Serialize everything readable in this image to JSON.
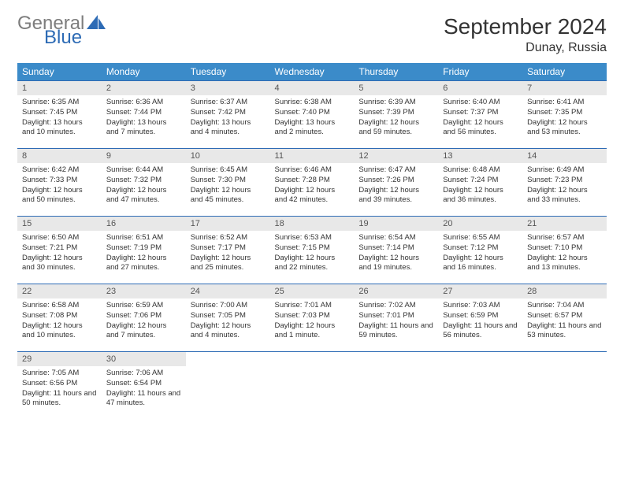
{
  "logo": {
    "gray": "General",
    "blue": "Blue",
    "sail_color": "#2d6bb5"
  },
  "title": "September 2024",
  "location": "Dunay, Russia",
  "colors": {
    "header_bg": "#3b8bc9",
    "header_text": "#ffffff",
    "row_border": "#2d6bb5",
    "daynum_bg": "#e8e8e8",
    "body_text": "#333333"
  },
  "dow": [
    "Sunday",
    "Monday",
    "Tuesday",
    "Wednesday",
    "Thursday",
    "Friday",
    "Saturday"
  ],
  "weeks": [
    [
      {
        "n": "1",
        "sr": "6:35 AM",
        "ss": "7:45 PM",
        "dl": "13 hours and 10 minutes."
      },
      {
        "n": "2",
        "sr": "6:36 AM",
        "ss": "7:44 PM",
        "dl": "13 hours and 7 minutes."
      },
      {
        "n": "3",
        "sr": "6:37 AM",
        "ss": "7:42 PM",
        "dl": "13 hours and 4 minutes."
      },
      {
        "n": "4",
        "sr": "6:38 AM",
        "ss": "7:40 PM",
        "dl": "13 hours and 2 minutes."
      },
      {
        "n": "5",
        "sr": "6:39 AM",
        "ss": "7:39 PM",
        "dl": "12 hours and 59 minutes."
      },
      {
        "n": "6",
        "sr": "6:40 AM",
        "ss": "7:37 PM",
        "dl": "12 hours and 56 minutes."
      },
      {
        "n": "7",
        "sr": "6:41 AM",
        "ss": "7:35 PM",
        "dl": "12 hours and 53 minutes."
      }
    ],
    [
      {
        "n": "8",
        "sr": "6:42 AM",
        "ss": "7:33 PM",
        "dl": "12 hours and 50 minutes."
      },
      {
        "n": "9",
        "sr": "6:44 AM",
        "ss": "7:32 PM",
        "dl": "12 hours and 47 minutes."
      },
      {
        "n": "10",
        "sr": "6:45 AM",
        "ss": "7:30 PM",
        "dl": "12 hours and 45 minutes."
      },
      {
        "n": "11",
        "sr": "6:46 AM",
        "ss": "7:28 PM",
        "dl": "12 hours and 42 minutes."
      },
      {
        "n": "12",
        "sr": "6:47 AM",
        "ss": "7:26 PM",
        "dl": "12 hours and 39 minutes."
      },
      {
        "n": "13",
        "sr": "6:48 AM",
        "ss": "7:24 PM",
        "dl": "12 hours and 36 minutes."
      },
      {
        "n": "14",
        "sr": "6:49 AM",
        "ss": "7:23 PM",
        "dl": "12 hours and 33 minutes."
      }
    ],
    [
      {
        "n": "15",
        "sr": "6:50 AM",
        "ss": "7:21 PM",
        "dl": "12 hours and 30 minutes."
      },
      {
        "n": "16",
        "sr": "6:51 AM",
        "ss": "7:19 PM",
        "dl": "12 hours and 27 minutes."
      },
      {
        "n": "17",
        "sr": "6:52 AM",
        "ss": "7:17 PM",
        "dl": "12 hours and 25 minutes."
      },
      {
        "n": "18",
        "sr": "6:53 AM",
        "ss": "7:15 PM",
        "dl": "12 hours and 22 minutes."
      },
      {
        "n": "19",
        "sr": "6:54 AM",
        "ss": "7:14 PM",
        "dl": "12 hours and 19 minutes."
      },
      {
        "n": "20",
        "sr": "6:55 AM",
        "ss": "7:12 PM",
        "dl": "12 hours and 16 minutes."
      },
      {
        "n": "21",
        "sr": "6:57 AM",
        "ss": "7:10 PM",
        "dl": "12 hours and 13 minutes."
      }
    ],
    [
      {
        "n": "22",
        "sr": "6:58 AM",
        "ss": "7:08 PM",
        "dl": "12 hours and 10 minutes."
      },
      {
        "n": "23",
        "sr": "6:59 AM",
        "ss": "7:06 PM",
        "dl": "12 hours and 7 minutes."
      },
      {
        "n": "24",
        "sr": "7:00 AM",
        "ss": "7:05 PM",
        "dl": "12 hours and 4 minutes."
      },
      {
        "n": "25",
        "sr": "7:01 AM",
        "ss": "7:03 PM",
        "dl": "12 hours and 1 minute."
      },
      {
        "n": "26",
        "sr": "7:02 AM",
        "ss": "7:01 PM",
        "dl": "11 hours and 59 minutes."
      },
      {
        "n": "27",
        "sr": "7:03 AM",
        "ss": "6:59 PM",
        "dl": "11 hours and 56 minutes."
      },
      {
        "n": "28",
        "sr": "7:04 AM",
        "ss": "6:57 PM",
        "dl": "11 hours and 53 minutes."
      }
    ],
    [
      {
        "n": "29",
        "sr": "7:05 AM",
        "ss": "6:56 PM",
        "dl": "11 hours and 50 minutes."
      },
      {
        "n": "30",
        "sr": "7:06 AM",
        "ss": "6:54 PM",
        "dl": "11 hours and 47 minutes."
      },
      null,
      null,
      null,
      null,
      null
    ]
  ],
  "labels": {
    "sunrise": "Sunrise:",
    "sunset": "Sunset:",
    "daylight": "Daylight:"
  }
}
